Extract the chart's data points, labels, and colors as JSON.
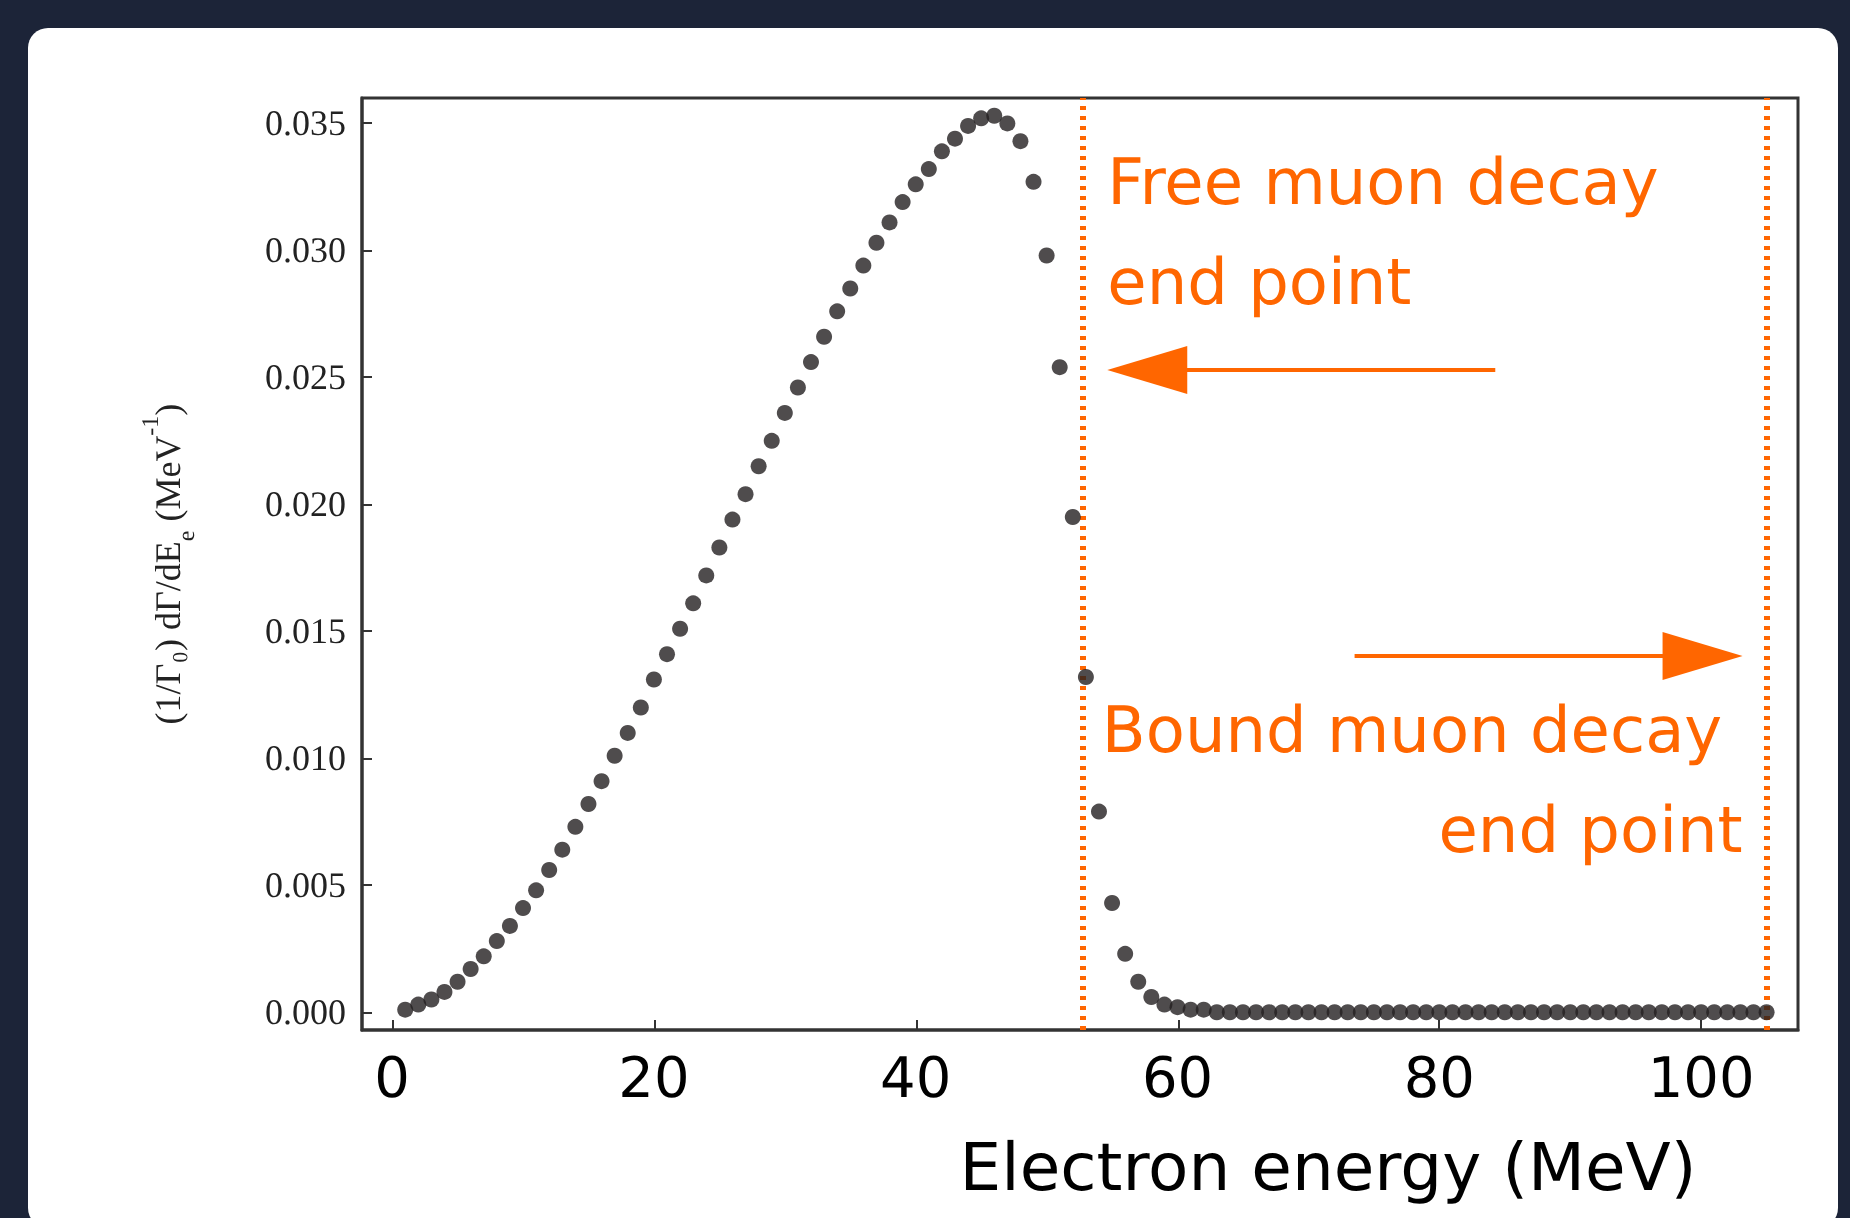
{
  "chart_data": {
    "type": "scatter",
    "xlabel": "Electron energy (MeV)",
    "ylabel": "(1/Γ₀) dΓ/dE$_{e}$ (MeV$^{-1}$)",
    "x": [
      1,
      2,
      3,
      4,
      5,
      6,
      7,
      8,
      9,
      10,
      11,
      12,
      13,
      14,
      15,
      16,
      17,
      18,
      19,
      20,
      21,
      22,
      23,
      24,
      25,
      26,
      27,
      28,
      29,
      30,
      31,
      32,
      33,
      34,
      35,
      36,
      37,
      38,
      39,
      40,
      41,
      42,
      43,
      44,
      45,
      46,
      47,
      48,
      49,
      50,
      51,
      52,
      53,
      54,
      55,
      56,
      57,
      58,
      59,
      60,
      61,
      62,
      63,
      64,
      65,
      66,
      67,
      68,
      69,
      70,
      71,
      72,
      73,
      74,
      75,
      76,
      77,
      78,
      79,
      80,
      81,
      82,
      83,
      84,
      85,
      86,
      87,
      88,
      89,
      90,
      91,
      92,
      93,
      94,
      95,
      96,
      97,
      98,
      99,
      100,
      101,
      102,
      103,
      104,
      105
    ],
    "series": [
      {
        "color": "#231f20",
        "values": [
          0.0001,
          0.0003,
          0.0005,
          0.0008,
          0.0012,
          0.0017,
          0.0022,
          0.0028,
          0.0034,
          0.0041,
          0.0048,
          0.0056,
          0.0064,
          0.0073,
          0.0082,
          0.0091,
          0.0101,
          0.011,
          0.012,
          0.0131,
          0.0141,
          0.0151,
          0.0161,
          0.0172,
          0.0183,
          0.0194,
          0.0204,
          0.0215,
          0.0225,
          0.0236,
          0.0246,
          0.0256,
          0.0266,
          0.0276,
          0.0285,
          0.0294,
          0.0303,
          0.0311,
          0.0319,
          0.0326,
          0.0332,
          0.0339,
          0.0344,
          0.0349,
          0.0352,
          0.0353,
          0.035,
          0.0343,
          0.0327,
          0.0298,
          0.0254,
          0.0195,
          0.0132,
          0.0079,
          0.0043,
          0.0023,
          0.0012,
          0.0006,
          0.0003,
          0.0002,
          0.0001,
          0.0001,
          0,
          0,
          0,
          0,
          0,
          0,
          0,
          0,
          0,
          0,
          0,
          0,
          0,
          0,
          0,
          0,
          0,
          0,
          0,
          0,
          0,
          0,
          0,
          0,
          0,
          0,
          0,
          0,
          0,
          0,
          0,
          0,
          0,
          0,
          0,
          0,
          0,
          0,
          0,
          0,
          0,
          0,
          0
        ]
      }
    ],
    "xlim": [
      -2.3,
      107.4
    ],
    "xticks": [
      0,
      20,
      40,
      60,
      80,
      100
    ],
    "ylim": [
      -0.0007,
      0.036
    ],
    "yticks": [
      {
        "value": 0,
        "label": "0.000"
      },
      {
        "value": 0.005,
        "label": "0.005"
      },
      {
        "value": 0.01,
        "label": "0.010"
      },
      {
        "value": 0.015,
        "label": "0.015"
      },
      {
        "value": 0.02,
        "label": "0.020"
      },
      {
        "value": 0.025,
        "label": "0.025"
      },
      {
        "value": 0.03,
        "label": "0.030"
      },
      {
        "value": 0.035,
        "label": "0.035"
      }
    ],
    "ref_lines": [
      {
        "axis": "x",
        "value": 52.8,
        "color": "#ff6600",
        "line_style": "dotted",
        "label": "Free muon decay end point"
      },
      {
        "axis": "x",
        "value": 105,
        "color": "#ff6600",
        "line_style": "dotted",
        "label": "Bound muon decay end point"
      }
    ],
    "grid": false,
    "marker": "circle"
  }
}
